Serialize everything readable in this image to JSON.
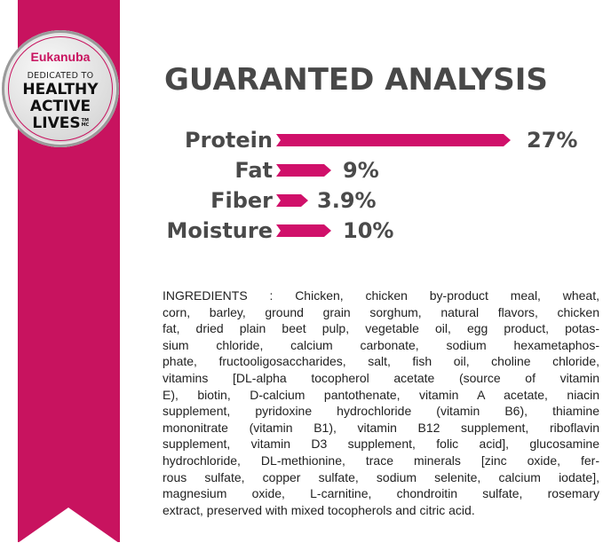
{
  "badge": {
    "brand": "Eukanuba",
    "dedicated": "DEDICATED TO",
    "line1": "HEALTHY",
    "line2": "ACTIVE",
    "line3": "LIVES",
    "mark": "TM MC"
  },
  "title": "GUARANTED ANALYSIS",
  "colors": {
    "ribbon": "#c8135f",
    "bar": "#d0106a",
    "text": "#4a4a4a"
  },
  "analysis": [
    {
      "label": "Protein",
      "value": "27%",
      "percent": 27
    },
    {
      "label": "Fat",
      "value": "9%",
      "percent": 9
    },
    {
      "label": "Fiber",
      "value": "3.9%",
      "percent": 3.9
    },
    {
      "label": "Moisture",
      "value": "10%",
      "percent": 10
    }
  ],
  "ingredients": [
    "INGREDIENTS : Chicken, chicken by-product meal, wheat,",
    "corn, barley, ground grain sorghum, natural flavors, chicken",
    "fat, dried plain beet pulp, vegetable oil, egg product, potas-",
    "sium chloride, calcium carbonate, sodium hexametaphos-",
    "phate, fructooligosaccharides, salt, fish oil, choline chloride,",
    "vitamins [DL-alpha tocopherol acetate (source of vitamin",
    "E), biotin, D-calcium pantothenate, vitamin A acetate, niacin",
    "supplement, pyridoxine hydrochloride (vitamin B6), thiamine",
    "mononitrate (vitamin B1), vitamin B12 supplement, riboflavin",
    "supplement, vitamin D3 supplement, folic acid], glucosamine",
    "hydrochloride, DL-methionine, trace minerals [zinc oxide, fer-",
    "rous sulfate, copper sulfate, sodium selenite, calcium iodate],",
    "magnesium oxide, L-carnitine, chondroitin sulfate, rosemary",
    "extract, preserved with mixed tocopherols and citric acid."
  ]
}
